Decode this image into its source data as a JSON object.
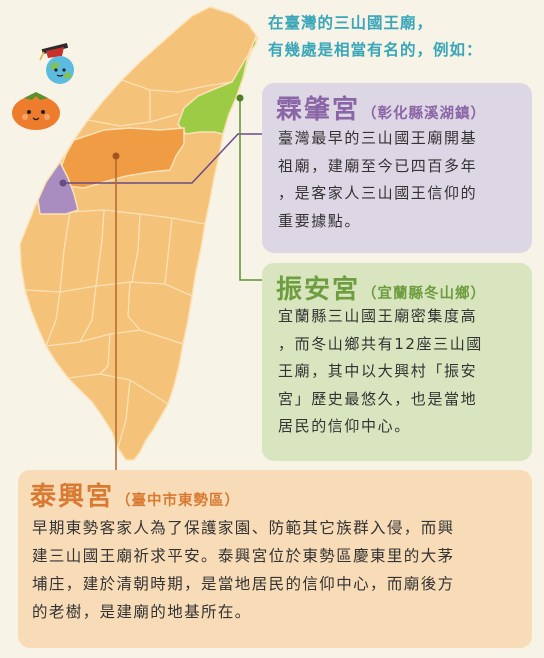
{
  "intro": {
    "line1": "在臺灣的三山國王廟，",
    "line2": "有幾處是相當有名的，例如："
  },
  "temples": {
    "lin_zhao": {
      "name": "霖肇宮",
      "location": "（彰化縣溪湖鎮）",
      "lines": [
        "臺灣最早的三山國王廟開基",
        "祖廟，建廟至今已四百多年",
        "，是客家人三山國王信仰的",
        "重要據點。"
      ],
      "color": "#a98cc0"
    },
    "zhen_an": {
      "name": "振安宮",
      "location": "（宜蘭縣冬山鄉）",
      "lines": [
        "宜蘭縣三山國王廟密集度高",
        "，而冬山鄉共有12座三山國",
        "王廟，其中以大興村「振安",
        "宮」歷史最悠久，也是當地",
        "居民的信仰中心。"
      ],
      "color": "#9ccc45"
    },
    "tai_xing": {
      "name": "泰興宮",
      "location": "（臺中市東勢區）",
      "lines": [
        "早期東勢客家人為了保護家園、防範其它族群入侵，而興",
        "建三山國王廟祈求平安。泰興宮位於東勢區慶東里的大茅",
        "埔庄，建於清朝時期，是當地居民的信仰中心，而廟後方",
        "的老樹，是建廟的地基所在。"
      ],
      "color": "#ef9c45"
    }
  },
  "map": {
    "base_color": "#f5c27a",
    "border_color": "#fbe2b6"
  }
}
